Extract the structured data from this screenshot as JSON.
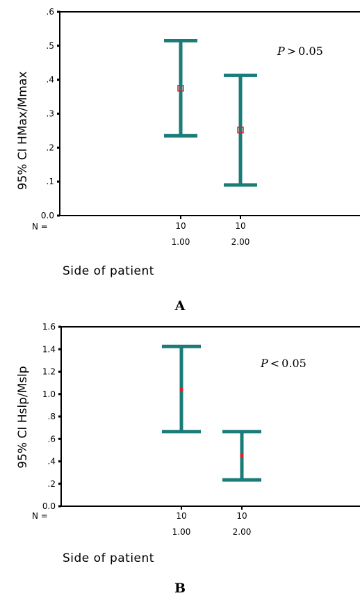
{
  "chart_data": [
    {
      "type": "errorbar",
      "panel_label": "A",
      "ylabel": "95% CI HMax/Mmax",
      "xlabel": "Side of patient",
      "ylim": [
        0.0,
        0.6
      ],
      "y_ticks": [
        ".6",
        ".5",
        ".4",
        ".3",
        ".2",
        ".1",
        "0.0"
      ],
      "y_tick_values": [
        0.6,
        0.5,
        0.4,
        0.3,
        0.2,
        0.1,
        0.0
      ],
      "n_label": "N =",
      "annotation": {
        "p_symbol": "P",
        "operator": ">",
        "value": "0.05"
      },
      "categories": [
        "1.00",
        "2.00"
      ],
      "n": [
        "10",
        "10"
      ],
      "means": [
        0.375,
        0.252
      ],
      "lower": [
        0.235,
        0.09
      ],
      "upper": [
        0.515,
        0.413
      ],
      "bar_color": "#1a7c78",
      "mean_color": "#d8222a"
    },
    {
      "type": "errorbar",
      "panel_label": "B",
      "ylabel": "95% CI Hslp/Mslp",
      "xlabel": "Side of patient",
      "ylim": [
        0.0,
        1.6
      ],
      "y_ticks": [
        "1.6",
        "1.4",
        "1.2",
        "1.0",
        ".8",
        ".6",
        ".4",
        ".2",
        "0.0"
      ],
      "y_tick_values": [
        1.6,
        1.4,
        1.2,
        1.0,
        0.8,
        0.6,
        0.4,
        0.2,
        0.0
      ],
      "n_label": "N =",
      "annotation": {
        "p_symbol": "P",
        "operator": "<",
        "value": "0.05"
      },
      "categories": [
        "1.00",
        "2.00"
      ],
      "n": [
        "10",
        "10"
      ],
      "means": [
        1.04,
        0.455
      ],
      "lower": [
        0.665,
        0.235
      ],
      "upper": [
        1.425,
        0.665
      ],
      "bar_color": "#1a7c78",
      "mean_color": "#d8222a"
    }
  ]
}
